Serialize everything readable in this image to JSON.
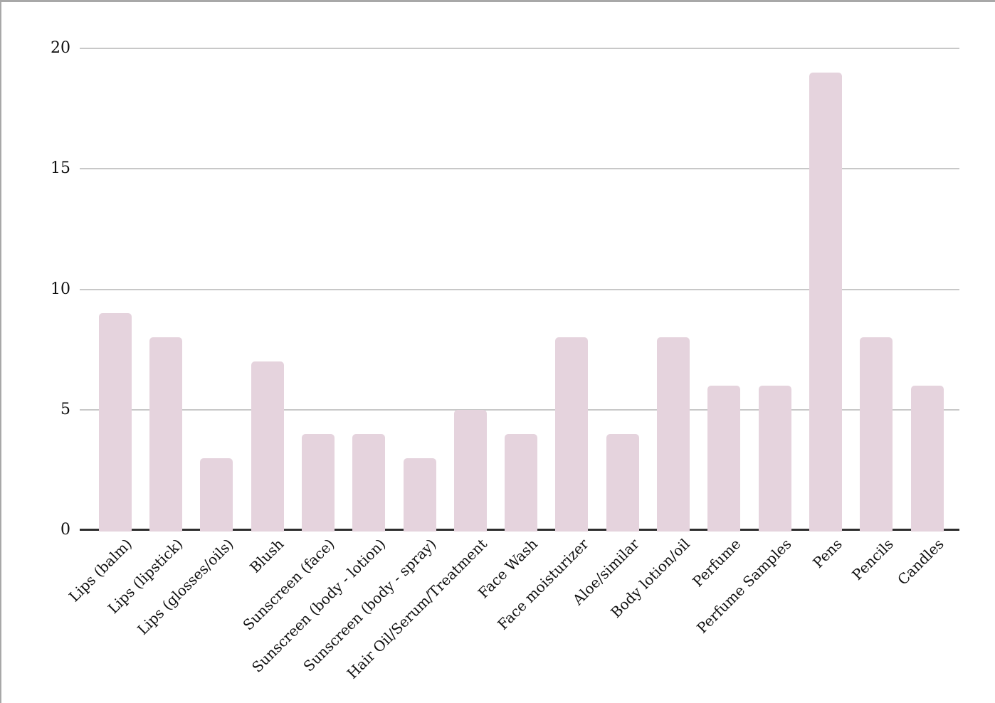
{
  "chart_data": {
    "type": "bar",
    "title": "",
    "xlabel": "",
    "ylabel": "",
    "categories": [
      "Lips (balm)",
      "Lips (lipstick)",
      "Lips (glosses/oils)",
      "Blush",
      "Sunscreen (face)",
      "Sunscreen (body - lotion)",
      "Sunscreen (body - spray)",
      "Hair Oil/Serum/Treatment",
      "Face Wash",
      "Face moisturizer",
      "Aloe/similar",
      "Body lotion/oil",
      "Perfume",
      "Perfume Samples",
      "Pens",
      "Pencils",
      "Candles"
    ],
    "values": [
      9,
      8,
      3,
      7,
      4,
      4,
      3,
      5,
      4,
      8,
      4,
      8,
      6,
      6,
      19,
      8,
      6
    ],
    "ylim": [
      0,
      20
    ],
    "yticks": [
      0,
      5,
      10,
      15,
      20
    ],
    "grid": true,
    "legend": false,
    "x_label_rotation_deg": -45,
    "colors": {
      "bar_fill": "#e5d3dd",
      "gridline": "#c8c8c8",
      "axis_line": "#2d2d2d",
      "text": "#0f0f0f",
      "frame_border": "#a8a8a8",
      "background": "#ffffff"
    }
  }
}
